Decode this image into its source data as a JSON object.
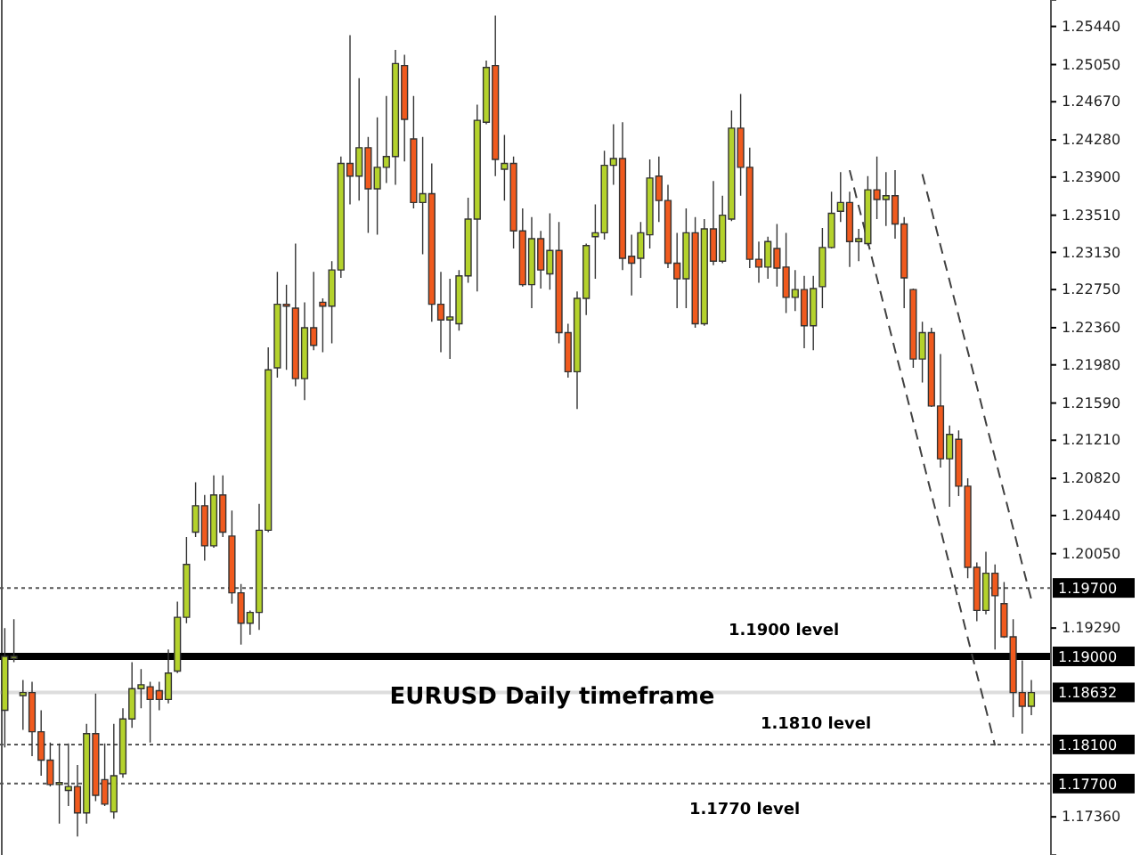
{
  "chart_data": {
    "type": "candlestick",
    "title": "EURUSD Daily timeframe",
    "categories": [
      null,
      null,
      null,
      null,
      null,
      null,
      null,
      null,
      null,
      null,
      null,
      null,
      null,
      null,
      null,
      null,
      null,
      null,
      null,
      null,
      null,
      null,
      null,
      null,
      null,
      null,
      null,
      null,
      null,
      null,
      null,
      null,
      null,
      null,
      null,
      null,
      null,
      null,
      null,
      null,
      null,
      null,
      null,
      null,
      null,
      null,
      null,
      null,
      null,
      null,
      null,
      null,
      null,
      null,
      null,
      null,
      null,
      null,
      null,
      null,
      null,
      null,
      null,
      null,
      null,
      null,
      null,
      null,
      null,
      null,
      null,
      null,
      null,
      null,
      null,
      null,
      null,
      null,
      null,
      null,
      null,
      null,
      null,
      null,
      null,
      null,
      null,
      null,
      null,
      null,
      null,
      null,
      null,
      null,
      null,
      null,
      null,
      null,
      null,
      null,
      null,
      null,
      null,
      null,
      null,
      null,
      null,
      null,
      null,
      null,
      null,
      null,
      null,
      null
    ],
    "ohlc": [
      [
        1.1845,
        1.1929,
        1.1807,
        1.19
      ],
      [
        1.1898,
        1.1938,
        1.1894,
        1.19
      ],
      [
        1.186,
        1.1876,
        1.1825,
        1.1863
      ],
      [
        1.1863,
        1.1874,
        1.1798,
        1.1823
      ],
      [
        1.1823,
        1.1845,
        1.1778,
        1.1794
      ],
      [
        1.1794,
        1.1812,
        1.1767,
        1.1769
      ],
      [
        1.1769,
        1.1811,
        1.1729,
        1.1771
      ],
      [
        1.1763,
        1.1811,
        1.1747,
        1.1767
      ],
      [
        1.1767,
        1.1789,
        1.1716,
        1.174
      ],
      [
        1.174,
        1.1831,
        1.1729,
        1.1821
      ],
      [
        1.1821,
        1.1862,
        1.1752,
        1.1758
      ],
      [
        1.1774,
        1.1811,
        1.1747,
        1.1749
      ],
      [
        1.1741,
        1.1831,
        1.1734,
        1.1778
      ],
      [
        1.178,
        1.1847,
        1.1776,
        1.1836
      ],
      [
        1.1836,
        1.1894,
        1.1827,
        1.1867
      ],
      [
        1.1867,
        1.1887,
        1.1847,
        1.1871
      ],
      [
        1.1869,
        1.1874,
        1.1812,
        1.1856
      ],
      [
        1.1865,
        1.1874,
        1.1845,
        1.1856
      ],
      [
        1.1856,
        1.1907,
        1.1852,
        1.1883
      ],
      [
        1.1885,
        1.1956,
        1.1883,
        1.194
      ],
      [
        1.194,
        1.2022,
        1.1934,
        1.1994
      ],
      [
        1.2027,
        1.2078,
        1.2022,
        1.2054
      ],
      [
        1.2054,
        1.2065,
        1.1998,
        1.2013
      ],
      [
        1.2013,
        1.2085,
        1.2011,
        1.2065
      ],
      [
        1.2065,
        1.2085,
        1.2022,
        1.2027
      ],
      [
        1.2023,
        1.2049,
        1.1954,
        1.1965
      ],
      [
        1.1965,
        1.1974,
        1.1912,
        1.1934
      ],
      [
        1.1934,
        1.1947,
        1.1922,
        1.1945
      ],
      [
        1.1945,
        1.2056,
        1.1927,
        1.2029
      ],
      [
        1.2029,
        1.2216,
        1.2027,
        1.2193
      ],
      [
        1.2195,
        1.2293,
        1.2185,
        1.226
      ],
      [
        1.226,
        1.228,
        1.2193,
        1.2258
      ],
      [
        1.2256,
        1.2322,
        1.2176,
        1.2184
      ],
      [
        1.2184,
        1.2262,
        1.2162,
        1.2236
      ],
      [
        1.2236,
        1.2293,
        1.2213,
        1.2218
      ],
      [
        1.2262,
        1.2266,
        1.2211,
        1.2258
      ],
      [
        1.2258,
        1.2304,
        1.222,
        1.2295
      ],
      [
        1.2295,
        1.2411,
        1.2287,
        1.2404
      ],
      [
        1.2404,
        1.2535,
        1.2362,
        1.2391
      ],
      [
        1.2391,
        1.2491,
        1.2366,
        1.242
      ],
      [
        1.242,
        1.2431,
        1.2333,
        1.2378
      ],
      [
        1.2378,
        1.2451,
        1.2331,
        1.24
      ],
      [
        1.24,
        1.2473,
        1.2384,
        1.2411
      ],
      [
        1.2411,
        1.252,
        1.2382,
        1.2506
      ],
      [
        1.2504,
        1.2515,
        1.2406,
        1.2449
      ],
      [
        1.2429,
        1.2473,
        1.2358,
        1.2364
      ],
      [
        1.2364,
        1.2431,
        1.2311,
        1.2373
      ],
      [
        1.2373,
        1.2404,
        1.2242,
        1.226
      ],
      [
        1.226,
        1.2293,
        1.2211,
        1.2244
      ],
      [
        1.2244,
        1.2286,
        1.2204,
        1.2247
      ],
      [
        1.224,
        1.2295,
        1.2233,
        1.2289
      ],
      [
        1.2289,
        1.2369,
        1.2282,
        1.2347
      ],
      [
        1.2347,
        1.2464,
        1.2273,
        1.2448
      ],
      [
        1.2446,
        1.2509,
        1.2444,
        1.2502
      ],
      [
        1.2504,
        1.2555,
        1.2391,
        1.2408
      ],
      [
        1.2398,
        1.2433,
        1.2366,
        1.2404
      ],
      [
        1.2404,
        1.2411,
        1.2317,
        1.2335
      ],
      [
        1.2335,
        1.2358,
        1.2278,
        1.228
      ],
      [
        1.228,
        1.2349,
        1.2256,
        1.2327
      ],
      [
        1.2327,
        1.2335,
        1.2276,
        1.2295
      ],
      [
        1.2291,
        1.2353,
        1.2275,
        1.2315
      ],
      [
        1.2315,
        1.2344,
        1.222,
        1.2231
      ],
      [
        1.2231,
        1.224,
        1.2185,
        1.2191
      ],
      [
        1.2191,
        1.2273,
        1.2153,
        1.2266
      ],
      [
        1.2266,
        1.2322,
        1.2249,
        1.232
      ],
      [
        1.2329,
        1.2362,
        1.2286,
        1.2333
      ],
      [
        1.2333,
        1.2417,
        1.2326,
        1.2402
      ],
      [
        1.2402,
        1.2444,
        1.2382,
        1.2409
      ],
      [
        1.2409,
        1.2446,
        1.2295,
        1.2307
      ],
      [
        1.2309,
        1.2331,
        1.2269,
        1.2302
      ],
      [
        1.2307,
        1.2344,
        1.2287,
        1.2333
      ],
      [
        1.2331,
        1.2408,
        1.2317,
        1.2389
      ],
      [
        1.2391,
        1.2411,
        1.2344,
        1.2366
      ],
      [
        1.2366,
        1.2382,
        1.2297,
        1.2302
      ],
      [
        1.2302,
        1.2333,
        1.2256,
        1.2286
      ],
      [
        1.2286,
        1.2358,
        1.2256,
        1.2333
      ],
      [
        1.2333,
        1.2349,
        1.2236,
        1.224
      ],
      [
        1.224,
        1.2347,
        1.2238,
        1.2337
      ],
      [
        1.2337,
        1.2386,
        1.23,
        1.2304
      ],
      [
        1.2304,
        1.2371,
        1.2302,
        1.2351
      ],
      [
        1.2347,
        1.2458,
        1.2345,
        1.244
      ],
      [
        1.244,
        1.2475,
        1.2371,
        1.24
      ],
      [
        1.24,
        1.242,
        1.2297,
        1.2306
      ],
      [
        1.2306,
        1.2324,
        1.2282,
        1.2298
      ],
      [
        1.2298,
        1.2329,
        1.2286,
        1.2324
      ],
      [
        1.2317,
        1.2342,
        1.2278,
        1.2297
      ],
      [
        1.2298,
        1.2333,
        1.2251,
        1.2267
      ],
      [
        1.2267,
        1.2295,
        1.2253,
        1.2275
      ],
      [
        1.2275,
        1.2289,
        1.2215,
        1.2238
      ],
      [
        1.2238,
        1.2289,
        1.2213,
        1.2276
      ],
      [
        1.2278,
        1.2338,
        1.2256,
        1.2318
      ],
      [
        1.2318,
        1.2375,
        1.2317,
        1.2353
      ],
      [
        1.2355,
        1.2395,
        1.2344,
        1.2364
      ],
      [
        1.2364,
        1.2375,
        1.2298,
        1.2324
      ],
      [
        1.2324,
        1.2337,
        1.2304,
        1.2327
      ],
      [
        1.2322,
        1.2391,
        1.232,
        1.2377
      ],
      [
        1.2377,
        1.2411,
        1.2347,
        1.2367
      ],
      [
        1.2367,
        1.2395,
        1.234,
        1.2371
      ],
      [
        1.2371,
        1.2397,
        1.2327,
        1.2342
      ],
      [
        1.2342,
        1.2349,
        1.2256,
        1.2287
      ],
      [
        1.2275,
        1.2276,
        1.2195,
        1.2204
      ],
      [
        1.2204,
        1.2242,
        1.218,
        1.2231
      ],
      [
        1.2231,
        1.2236,
        1.2155,
        1.2156
      ],
      [
        1.2156,
        1.2209,
        1.2093,
        1.2102
      ],
      [
        1.2102,
        1.2136,
        1.2053,
        1.2127
      ],
      [
        1.2122,
        1.2131,
        1.2064,
        1.2074
      ],
      [
        1.2074,
        1.2082,
        1.198,
        1.1991
      ],
      [
        1.1991,
        1.1996,
        1.1936,
        1.1947
      ],
      [
        1.1947,
        1.2007,
        1.1943,
        1.1985
      ],
      [
        1.1985,
        1.1994,
        1.1907,
        1.1962
      ],
      [
        1.1954,
        1.1976,
        1.1919,
        1.192
      ],
      [
        1.192,
        1.1938,
        1.1838,
        1.1863
      ],
      [
        1.1863,
        1.1896,
        1.1821,
        1.1849
      ],
      [
        1.1849,
        1.1876,
        1.184,
        1.1863
      ]
    ],
    "colors": [
      "#b4d22c",
      "#b4d22c",
      "#b4d22c",
      "#f05a1e",
      "#f05a1e",
      "#f05a1e",
      "#b4d22c",
      "#b4d22c",
      "#f05a1e",
      "#b4d22c",
      "#f05a1e",
      "#f05a1e",
      "#b4d22c",
      "#b4d22c",
      "#b4d22c",
      "#b4d22c",
      "#f05a1e",
      "#f05a1e",
      "#b4d22c",
      "#b4d22c",
      "#b4d22c",
      "#b4d22c",
      "#f05a1e",
      "#b4d22c",
      "#f05a1e",
      "#f05a1e",
      "#f05a1e",
      "#b4d22c",
      "#b4d22c",
      "#b4d22c",
      "#b4d22c",
      "#f05a1e",
      "#f05a1e",
      "#b4d22c",
      "#f05a1e",
      "#f05a1e",
      "#b4d22c",
      "#b4d22c",
      "#f05a1e",
      "#b4d22c",
      "#f05a1e",
      "#b4d22c",
      "#b4d22c",
      "#b4d22c",
      "#f05a1e",
      "#f05a1e",
      "#b4d22c",
      "#f05a1e",
      "#f05a1e",
      "#b4d22c",
      "#b4d22c",
      "#b4d22c",
      "#b4d22c",
      "#b4d22c",
      "#f05a1e",
      "#b4d22c",
      "#f05a1e",
      "#f05a1e",
      "#b4d22c",
      "#f05a1e",
      "#b4d22c",
      "#f05a1e",
      "#f05a1e",
      "#b4d22c",
      "#b4d22c",
      "#b4d22c",
      "#b4d22c",
      "#b4d22c",
      "#f05a1e",
      "#f05a1e",
      "#b4d22c",
      "#b4d22c",
      "#f05a1e",
      "#f05a1e",
      "#f05a1e",
      "#b4d22c",
      "#f05a1e",
      "#b4d22c",
      "#f05a1e",
      "#b4d22c",
      "#b4d22c",
      "#f05a1e",
      "#f05a1e",
      "#f05a1e",
      "#b4d22c",
      "#f05a1e",
      "#f05a1e",
      "#b4d22c",
      "#f05a1e",
      "#b4d22c",
      "#b4d22c",
      "#b4d22c",
      "#b4d22c",
      "#f05a1e",
      "#b4d22c",
      "#b4d22c",
      "#f05a1e",
      "#b4d22c",
      "#f05a1e",
      "#f05a1e",
      "#f05a1e",
      "#b4d22c",
      "#f05a1e",
      "#f05a1e",
      "#b4d22c",
      "#f05a1e",
      "#f05a1e",
      "#f05a1e",
      "#b4d22c",
      "#f05a1e",
      "#f05a1e",
      "#f05a1e",
      "#f05a1e",
      "#b4d22c"
    ],
    "series": [
      {
        "type": "line",
        "color": "#404040",
        "line_style": "dashed",
        "values": [
          null,
          null,
          null,
          null,
          null,
          null,
          null,
          null,
          null,
          null,
          null,
          null,
          null,
          null,
          null,
          null,
          null,
          null,
          null,
          null,
          null,
          null,
          null,
          null,
          null,
          null,
          null,
          null,
          null,
          null,
          null,
          null,
          null,
          null,
          null,
          null,
          null,
          null,
          null,
          null,
          null,
          null,
          null,
          null,
          null,
          null,
          null,
          null,
          null,
          null,
          null,
          null,
          null,
          null,
          null,
          null,
          null,
          null,
          null,
          null,
          null,
          null,
          null,
          null,
          null,
          null,
          null,
          null,
          null,
          null,
          null,
          null,
          null,
          null,
          null,
          null,
          null,
          null,
          null,
          null,
          null,
          null,
          null,
          null,
          null,
          null,
          null,
          null,
          null,
          null,
          null,
          null,
          null,
          null,
          null,
          null,
          null,
          null,
          null,
          null,
          null,
          1.2393,
          1.2357,
          1.232,
          1.2284,
          1.2248,
          1.2212,
          1.2176,
          1.2139,
          1.2103,
          1.2067,
          1.2031,
          1.1994,
          1.1958
        ]
      },
      {
        "type": "line",
        "color": "#404040",
        "line_style": "dashed",
        "values": [
          null,
          null,
          null,
          null,
          null,
          null,
          null,
          null,
          null,
          null,
          null,
          null,
          null,
          null,
          null,
          null,
          null,
          null,
          null,
          null,
          null,
          null,
          null,
          null,
          null,
          null,
          null,
          null,
          null,
          null,
          null,
          null,
          null,
          null,
          null,
          null,
          null,
          null,
          null,
          null,
          null,
          null,
          null,
          null,
          null,
          null,
          null,
          null,
          null,
          null,
          null,
          null,
          null,
          null,
          null,
          null,
          null,
          null,
          null,
          null,
          null,
          null,
          null,
          null,
          null,
          null,
          null,
          null,
          null,
          null,
          null,
          null,
          null,
          null,
          null,
          null,
          null,
          null,
          null,
          null,
          null,
          null,
          null,
          null,
          null,
          null,
          null,
          null,
          null,
          null,
          null,
          null,
          null,
          1.2397,
          1.236,
          1.2324,
          1.2287,
          1.225,
          1.2213,
          1.2177,
          1.214,
          1.2103,
          1.2066,
          1.203,
          1.1993,
          1.1956,
          1.1919,
          1.1882,
          1.1846,
          1.1809,
          null,
          null,
          null,
          null
        ]
      }
    ],
    "ylim": [
      1.1697,
      1.2571
    ],
    "yticks": [
      {
        "value": 1.1736,
        "label": "1.17360"
      },
      {
        "value": 1.1929,
        "label": "1.19290"
      },
      {
        "value": 1.2005,
        "label": "1.20050"
      },
      {
        "value": 1.2044,
        "label": "1.20440"
      },
      {
        "value": 1.2082,
        "label": "1.20820"
      },
      {
        "value": 1.2121,
        "label": "1.21210"
      },
      {
        "value": 1.2159,
        "label": "1.21590"
      },
      {
        "value": 1.2198,
        "label": "1.21980"
      },
      {
        "value": 1.2236,
        "label": "1.22360"
      },
      {
        "value": 1.2275,
        "label": "1.22750"
      },
      {
        "value": 1.2313,
        "label": "1.23130"
      },
      {
        "value": 1.2351,
        "label": "1.23510"
      },
      {
        "value": 1.239,
        "label": "1.23900"
      },
      {
        "value": 1.2428,
        "label": "1.24280"
      },
      {
        "value": 1.2467,
        "label": "1.24670"
      },
      {
        "value": 1.2505,
        "label": "1.25050"
      },
      {
        "value": 1.2544,
        "label": "1.25440"
      }
    ],
    "tick_labels": "y",
    "ref_lines": [
      {
        "axis": "y",
        "value": 1.197,
        "label": "1.19700",
        "color": "#555555",
        "line_style": "dotted"
      },
      {
        "axis": "y",
        "value": 1.19,
        "label": "1.19000",
        "color": "#000000",
        "line_style": "solid"
      },
      {
        "axis": "y",
        "value": 1.18632,
        "label": "1.18632",
        "color": "#dddddd",
        "line_style": "solid"
      },
      {
        "axis": "y",
        "value": 1.181,
        "label": "1.18100",
        "color": "#555555",
        "line_style": "dotted"
      },
      {
        "axis": "y",
        "value": 1.177,
        "label": "1.17700",
        "color": "#555555",
        "line_style": "dotted"
      }
    ],
    "annotations": [
      {
        "text": "1.1900 level",
        "y": 1.19
      },
      {
        "text": "1.1810 level",
        "y": 1.181
      },
      {
        "text": "1.1770 level",
        "y": 1.177
      }
    ]
  }
}
